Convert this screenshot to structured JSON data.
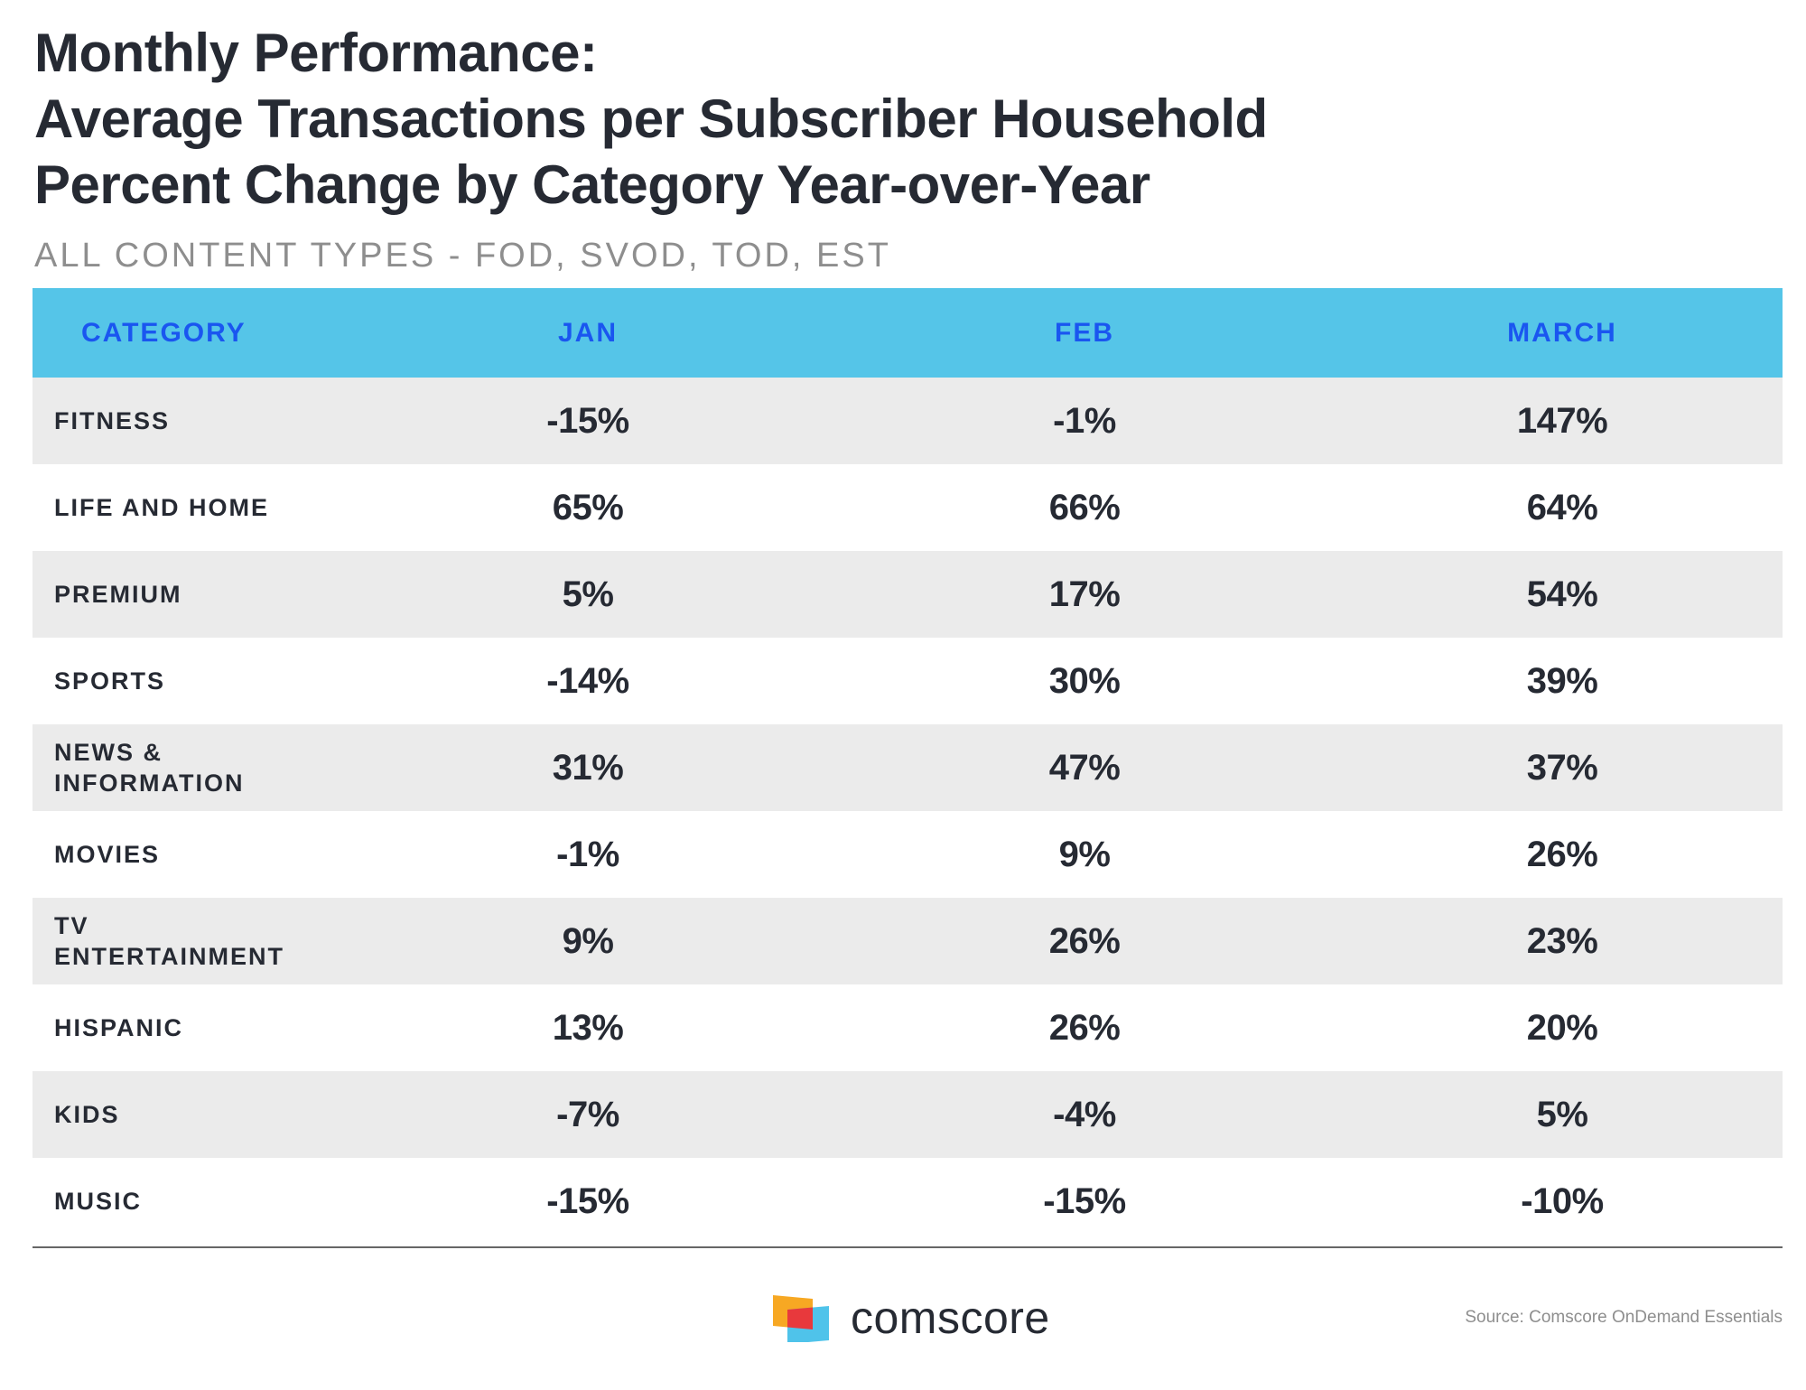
{
  "chart_data": {
    "type": "table",
    "title": [
      "Monthly Performance:",
      "Average Transactions per Subscriber Household",
      "Percent Change by Category Year-over-Year"
    ],
    "subtitle": "ALL CONTENT TYPES - FOD, SVOD, TOD, EST",
    "columns": [
      "CATEGORY",
      "JAN",
      "FEB",
      "MARCH"
    ],
    "rows": [
      {
        "category": [
          "FITNESS"
        ],
        "jan": "-15%",
        "feb": "-1%",
        "march": "147%"
      },
      {
        "category": [
          "LIFE AND HOME"
        ],
        "jan": "65%",
        "feb": "66%",
        "march": "64%"
      },
      {
        "category": [
          "PREMIUM"
        ],
        "jan": "5%",
        "feb": "17%",
        "march": "54%"
      },
      {
        "category": [
          "SPORTS"
        ],
        "jan": "-14%",
        "feb": "30%",
        "march": "39%"
      },
      {
        "category": [
          "NEWS &",
          "INFORMATION"
        ],
        "jan": "31%",
        "feb": "47%",
        "march": "37%"
      },
      {
        "category": [
          "MOVIES"
        ],
        "jan": "-1%",
        "feb": "9%",
        "march": "26%"
      },
      {
        "category": [
          "TV",
          "ENTERTAINMENT"
        ],
        "jan": "9%",
        "feb": "26%",
        "march": "23%"
      },
      {
        "category": [
          "HISPANIC"
        ],
        "jan": "13%",
        "feb": "26%",
        "march": "20%"
      },
      {
        "category": [
          "KIDS"
        ],
        "jan": "-7%",
        "feb": "-4%",
        "march": "5%"
      },
      {
        "category": [
          "MUSIC"
        ],
        "jan": "-15%",
        "feb": "-15%",
        "march": "-10%"
      }
    ]
  },
  "footer": {
    "brand": "comscore",
    "logo_icon": "comscore-logo-icon",
    "source": "Source: Comscore OnDemand Essentials"
  },
  "colors": {
    "header_bg": "#55c5e8",
    "header_text": "#1a56f0",
    "row_shade": "#ebebeb",
    "text_dark": "#262a33",
    "muted": "#8e8e8e"
  }
}
